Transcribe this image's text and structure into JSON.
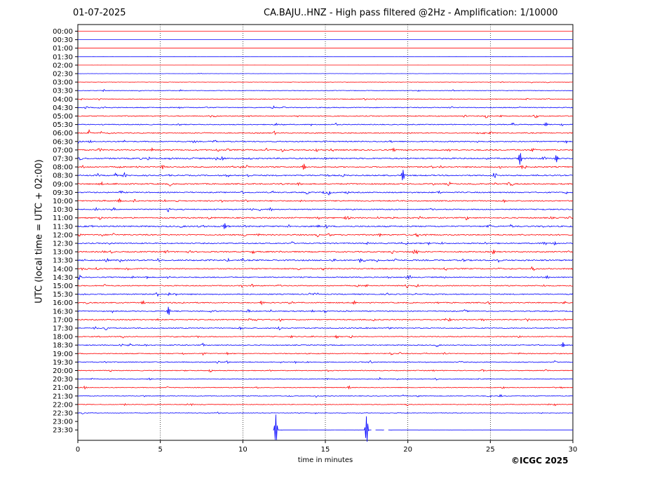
{
  "header": {
    "date": "01-07-2025",
    "title": "CA.BAJU..HNZ - High pass filtered @2Hz - Amplification: 1/10000"
  },
  "footer": {
    "copyright": "©ICGC 2025"
  },
  "chart_data": {
    "type": "line",
    "title": "CA.BAJU..HNZ - High pass filtered @2Hz - Amplification: 1/10000",
    "xlabel": "time in minutes",
    "ylabel": "UTC (local time = UTC + 02:00)",
    "xlim": [
      0,
      30
    ],
    "xticks": [
      0,
      5,
      10,
      15,
      20,
      25,
      30
    ],
    "vertical_gridlines_at": [
      5,
      10,
      15,
      20,
      25
    ],
    "grid": "vertical dotted",
    "row_labels": [
      "00:00",
      "00:30",
      "01:00",
      "01:30",
      "02:00",
      "02:30",
      "03:00",
      "03:30",
      "04:00",
      "04:30",
      "05:00",
      "05:30",
      "06:00",
      "06:30",
      "07:00",
      "07:30",
      "08:00",
      "08:30",
      "09:00",
      "09:30",
      "10:00",
      "10:30",
      "11:00",
      "11:30",
      "12:00",
      "12:30",
      "13:00",
      "13:30",
      "14:00",
      "14:30",
      "15:00",
      "15:30",
      "16:00",
      "16:30",
      "17:00",
      "17:30",
      "18:00",
      "18:30",
      "19:00",
      "19:30",
      "20:00",
      "20:30",
      "21:00",
      "21:30",
      "22:00",
      "22:30",
      "23:00",
      "23:30"
    ],
    "trace_colors": [
      "#ff0000",
      "#0000ff"
    ],
    "noise_level": [
      0.02,
      0.03,
      0.03,
      0.05,
      0.05,
      0.1,
      0.2,
      0.3,
      0.35,
      0.5,
      0.55,
      0.5,
      0.55,
      0.6,
      0.7,
      0.75,
      0.7,
      0.7,
      0.7,
      0.65,
      0.65,
      0.6,
      0.7,
      0.75,
      0.7,
      0.65,
      0.7,
      0.75,
      0.65,
      0.6,
      0.6,
      0.6,
      0.6,
      0.55,
      0.6,
      0.55,
      0.5,
      0.5,
      0.5,
      0.5,
      0.45,
      0.4,
      0.4,
      0.4,
      0.35,
      0.3,
      0.05,
      0.05
    ],
    "spikes": [
      {
        "row": 15,
        "minute": 26.8,
        "amplitude": 10
      },
      {
        "row": 15,
        "minute": 29.0,
        "amplitude": 6
      },
      {
        "row": 17,
        "minute": 19.7,
        "amplitude": 9
      },
      {
        "row": 16,
        "minute": 13.7,
        "amplitude": 5
      },
      {
        "row": 23,
        "minute": 8.9,
        "amplitude": 5
      },
      {
        "row": 33,
        "minute": 5.5,
        "amplitude": 7
      },
      {
        "row": 37,
        "minute": 29.4,
        "amplitude": 4
      },
      {
        "row": 47,
        "minute": 12.0,
        "amplitude": 22
      },
      {
        "row": 47,
        "minute": 17.5,
        "amplitude": 22
      }
    ],
    "data_gaps": [
      {
        "row": 46,
        "from_minute": 0,
        "to_minute": 30
      },
      {
        "row": 47,
        "from_minute": 0,
        "to_minute": 11.8
      },
      {
        "row": 47,
        "from_minute": 17.8,
        "to_minute": 18.0
      },
      {
        "row": 47,
        "from_minute": 18.6,
        "to_minute": 18.8
      }
    ]
  }
}
